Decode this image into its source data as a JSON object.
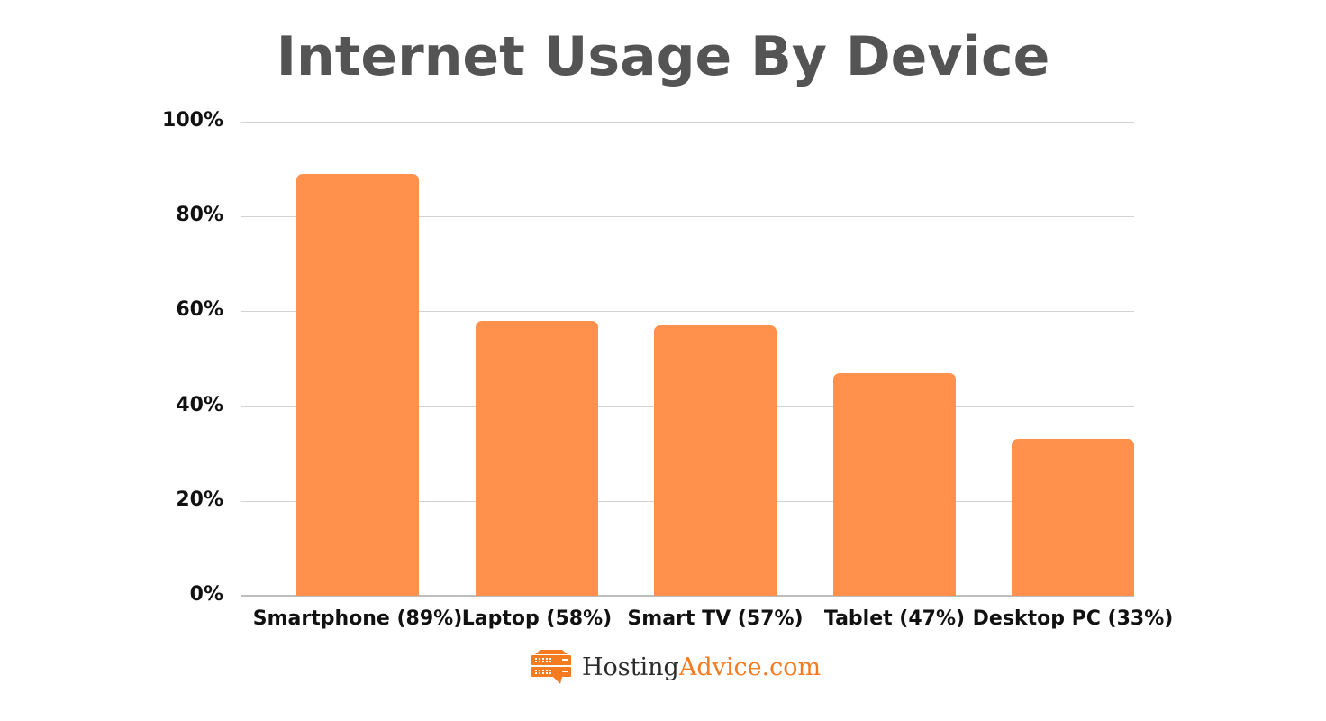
{
  "chart_data": {
    "type": "bar",
    "title": "Internet Usage By Device",
    "categories": [
      "Smartphone",
      "Laptop",
      "Smart TV",
      "Tablet",
      "Desktop PC"
    ],
    "category_labels": [
      "Smartphone (89%)",
      "Laptop (58%)",
      "Smart TV (57%)",
      "Tablet (47%)",
      "Desktop PC (33%)"
    ],
    "values": [
      89,
      58,
      57,
      47,
      33
    ],
    "xlabel": "",
    "ylabel": "",
    "ylim": [
      0,
      100
    ],
    "yticks": [
      "0%",
      "20%",
      "40%",
      "60%",
      "80%",
      "100%"
    ],
    "grid": true,
    "legend": null,
    "bar_color": "#ff914d"
  },
  "branding": {
    "logo_part1": "Hosting",
    "logo_part2": "Advice.com",
    "accent_color": "#f47b20"
  }
}
